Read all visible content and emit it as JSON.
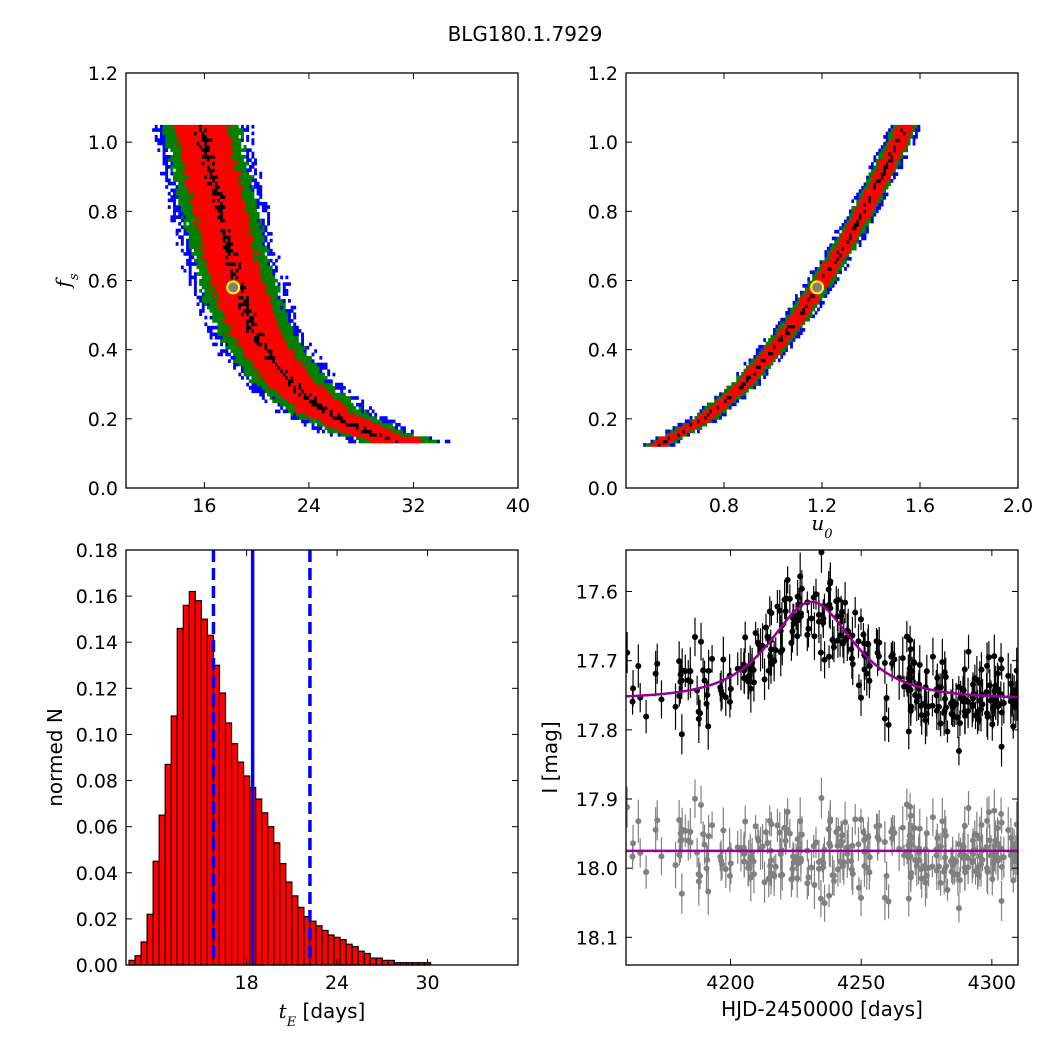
{
  "suptitle": "BLG180.1.7929",
  "colors": {
    "level1": "#000000",
    "level2": "#ff0000",
    "level3": "#008000",
    "level4": "#0000ff",
    "hist_fill": "#ff0000",
    "marker_face": "#808080",
    "marker_edge": "#ffff00",
    "model": "#990099",
    "residual_points": "#808080"
  },
  "chart_data": [
    {
      "type": "heatmap",
      "panel": "top-left",
      "xlabel": "",
      "ylabel": "f_s",
      "xlim": [
        10,
        40
      ],
      "ylim": [
        0,
        1.2
      ],
      "xticks": [
        16,
        24,
        32,
        40
      ],
      "yticks": [
        0.0,
        0.2,
        0.4,
        0.6,
        0.8,
        1.0,
        1.2
      ],
      "xtick_labels": [
        "16",
        "24",
        "32",
        "40"
      ],
      "ytick_labels": [
        "0.0",
        "0.2",
        "0.4",
        "0.6",
        "0.8",
        "1.0",
        "1.2"
      ],
      "ridge_fs": [
        1.04,
        0.95,
        0.85,
        0.75,
        0.65,
        0.55,
        0.45,
        0.38,
        0.3,
        0.22,
        0.16,
        0.14
      ],
      "ridge_tE": [
        15.8,
        16.3,
        16.9,
        17.5,
        18.1,
        18.9,
        19.9,
        21.1,
        22.8,
        25.3,
        28.6,
        30.8
      ],
      "band_halfwidths_tE": [
        0.4,
        2.0,
        2.9,
        3.7
      ],
      "fs_range": [
        0.13,
        1.05
      ],
      "best_fit": {
        "x": 18.2,
        "y": 0.58
      }
    },
    {
      "type": "heatmap",
      "panel": "top-right",
      "xlabel": "u_0",
      "ylabel": "",
      "xlim": [
        0.4,
        2.0
      ],
      "ylim": [
        0,
        1.2
      ],
      "xticks": [
        0.8,
        1.2,
        1.6,
        2.0
      ],
      "yticks": [
        0.0,
        0.2,
        0.4,
        0.6,
        0.8,
        1.0,
        1.2
      ],
      "xtick_labels": [
        "0.8",
        "1.2",
        "1.6",
        "2.0"
      ],
      "ytick_labels": [
        "0.0",
        "0.2",
        "0.4",
        "0.6",
        "0.8",
        "1.0",
        "1.2"
      ],
      "ridge_fs": [
        0.12,
        0.2,
        0.3,
        0.4,
        0.5,
        0.6,
        0.7,
        0.8,
        0.9,
        1.0,
        1.05
      ],
      "ridge_u0": [
        0.52,
        0.72,
        0.88,
        1.0,
        1.11,
        1.2,
        1.29,
        1.37,
        1.44,
        1.51,
        1.54
      ],
      "band_halfwidths_u0": [
        0.01,
        0.035,
        0.05,
        0.065
      ],
      "fs_range": [
        0.12,
        1.05
      ],
      "best_fit": {
        "x": 1.18,
        "y": 0.58
      }
    },
    {
      "type": "bar",
      "panel": "bottom-left",
      "xlabel": "t_E [days]",
      "xlabel_main": "t",
      "xlabel_sub": "E",
      "xlabel_units": "[days]",
      "ylabel": "normed N",
      "xlim": [
        10,
        36
      ],
      "ylim": [
        0,
        0.18
      ],
      "xticks": [
        18,
        24,
        30
      ],
      "yticks": [
        0.0,
        0.02,
        0.04,
        0.06,
        0.08,
        0.1,
        0.12,
        0.14,
        0.16,
        0.18
      ],
      "xtick_labels": [
        "18",
        "24",
        "30"
      ],
      "ytick_labels": [
        "0.00",
        "0.02",
        "0.04",
        "0.06",
        "0.08",
        "0.10",
        "0.12",
        "0.14",
        "0.16",
        "0.18"
      ],
      "bin_width": 0.4,
      "bin_start": 10.2,
      "values": [
        0.002,
        0.004,
        0.01,
        0.022,
        0.045,
        0.065,
        0.087,
        0.108,
        0.146,
        0.156,
        0.162,
        0.158,
        0.15,
        0.143,
        0.13,
        0.118,
        0.105,
        0.096,
        0.088,
        0.082,
        0.077,
        0.072,
        0.066,
        0.06,
        0.053,
        0.044,
        0.036,
        0.03,
        0.025,
        0.021,
        0.019,
        0.017,
        0.015,
        0.013,
        0.012,
        0.011,
        0.009,
        0.008,
        0.006,
        0.005,
        0.003,
        0.003,
        0.002,
        0.002,
        0.001,
        0.001,
        0.001,
        0.001,
        0.001,
        0.001
      ],
      "median": 18.4,
      "lower_1sigma": 15.8,
      "upper_1sigma": 22.2
    },
    {
      "type": "scatter",
      "panel": "bottom-right",
      "xlabel": "HJD-2450000 [days]",
      "ylabel": "I [mag]",
      "xlim": [
        4160,
        4310
      ],
      "ylim": [
        18.14,
        17.54
      ],
      "inverted_y": true,
      "xticks": [
        4200,
        4250,
        4300
      ],
      "yticks": [
        17.6,
        17.7,
        17.8,
        17.9,
        18.0,
        18.1
      ],
      "xtick_labels": [
        "4200",
        "4250",
        "4300"
      ],
      "ytick_labels": [
        "17.6",
        "17.7",
        "17.8",
        "17.9",
        "18.0",
        "18.1"
      ],
      "model": {
        "baseline": 17.755,
        "peak_mag": 17.615,
        "t0": 4231,
        "tE": 18.2,
        "u0": 1.18
      },
      "residual_baseline": 17.975,
      "photometry": {
        "n_points": 300,
        "scatter": 0.03,
        "errorbar": 0.025
      }
    }
  ]
}
